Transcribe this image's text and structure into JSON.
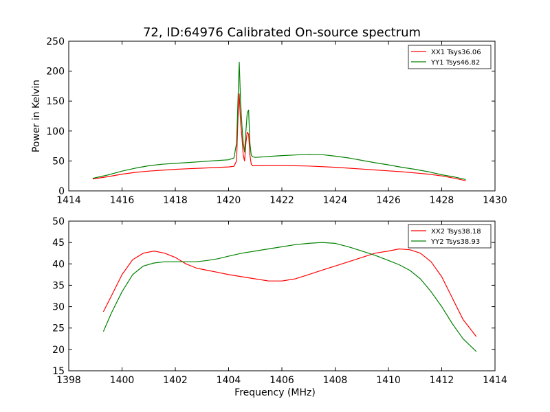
{
  "title": "72, ID:64976 Calibrated On-source spectrum",
  "colors": {
    "xx": "#ff0000",
    "yy": "#008000"
  },
  "chart_data": [
    {
      "type": "line",
      "title": "72, ID:64976 Calibrated On-source spectrum",
      "xlabel": "",
      "ylabel": "Power in Kelvin",
      "xlim": [
        1414,
        1430
      ],
      "ylim": [
        0,
        250
      ],
      "xticks": [
        1414,
        1416,
        1418,
        1420,
        1422,
        1424,
        1426,
        1428,
        1430
      ],
      "yticks": [
        0,
        50,
        100,
        150,
        200,
        250
      ],
      "legend_position": "top-right",
      "grid": false,
      "series": [
        {
          "name": "XX1 Tsys36.06",
          "color": "#ff0000",
          "x": [
            1414.9,
            1415.5,
            1416.0,
            1416.5,
            1417.0,
            1417.5,
            1418.0,
            1418.5,
            1419.0,
            1419.5,
            1420.0,
            1420.2,
            1420.3,
            1420.35,
            1420.4,
            1420.45,
            1420.5,
            1420.55,
            1420.6,
            1420.65,
            1420.7,
            1420.75,
            1420.8,
            1420.85,
            1420.9,
            1421.0,
            1421.5,
            1422.0,
            1422.5,
            1423.0,
            1423.5,
            1424.0,
            1424.5,
            1425.0,
            1425.5,
            1426.0,
            1426.5,
            1427.0,
            1427.5,
            1428.0,
            1428.5,
            1428.9
          ],
          "y": [
            20,
            24,
            28,
            31,
            33,
            34.5,
            36,
            37,
            38,
            39,
            40,
            41,
            50,
            120,
            162,
            115,
            90,
            60,
            50,
            80,
            98,
            95,
            60,
            45,
            42,
            42,
            42.5,
            42.5,
            42,
            41.5,
            40.5,
            39.5,
            38,
            36.5,
            35,
            33.5,
            32,
            30,
            28,
            25,
            21,
            17
          ]
        },
        {
          "name": "YY1 Tsys46.82",
          "color": "#008000",
          "x": [
            1414.9,
            1415.5,
            1416.0,
            1416.5,
            1417.0,
            1417.5,
            1418.0,
            1418.5,
            1419.0,
            1419.5,
            1420.0,
            1420.2,
            1420.3,
            1420.35,
            1420.4,
            1420.45,
            1420.5,
            1420.55,
            1420.6,
            1420.65,
            1420.7,
            1420.75,
            1420.8,
            1420.85,
            1420.9,
            1421.0,
            1421.5,
            1422.0,
            1422.5,
            1423.0,
            1423.5,
            1424.0,
            1424.5,
            1425.0,
            1425.5,
            1426.0,
            1426.5,
            1427.0,
            1427.5,
            1428.0,
            1428.5,
            1428.9
          ],
          "y": [
            21,
            27,
            33,
            38,
            42,
            44.5,
            46,
            47.5,
            49,
            50.5,
            52,
            55,
            80,
            150,
            215,
            150,
            110,
            80,
            65,
            100,
            130,
            135,
            80,
            60,
            57,
            56,
            57.5,
            59,
            60,
            61,
            60.5,
            58,
            55,
            51,
            47,
            43.5,
            39.5,
            36,
            32,
            27,
            23,
            19
          ]
        }
      ]
    },
    {
      "type": "line",
      "title": "",
      "xlabel": "Frequency (MHz)",
      "ylabel": "",
      "xlim": [
        1398,
        1414
      ],
      "ylim": [
        15,
        50
      ],
      "xticks": [
        1398,
        1400,
        1402,
        1404,
        1406,
        1408,
        1410,
        1412,
        1414
      ],
      "yticks": [
        15,
        20,
        25,
        30,
        35,
        40,
        45,
        50
      ],
      "legend_position": "top-right",
      "grid": false,
      "series": [
        {
          "name": "XX2 Tsys38.18",
          "color": "#ff0000",
          "x": [
            1399.3,
            1399.6,
            1400.0,
            1400.4,
            1400.8,
            1401.2,
            1401.6,
            1402.0,
            1402.4,
            1402.8,
            1403.2,
            1403.6,
            1404.0,
            1404.5,
            1405.0,
            1405.5,
            1406.0,
            1406.5,
            1407.0,
            1407.5,
            1408.0,
            1408.5,
            1409.0,
            1409.5,
            1410.0,
            1410.4,
            1410.8,
            1411.2,
            1411.6,
            1412.0,
            1412.4,
            1412.8,
            1413.3
          ],
          "y": [
            28.8,
            32.5,
            37.5,
            41,
            42.5,
            43,
            42.5,
            41.5,
            40,
            39,
            38.5,
            38,
            37.5,
            37,
            36.5,
            36,
            36,
            36.5,
            37.5,
            38.5,
            39.5,
            40.5,
            41.5,
            42.5,
            43,
            43.5,
            43.3,
            42.5,
            40.5,
            37,
            32,
            27,
            23
          ]
        },
        {
          "name": "YY2 Tsys38.93",
          "color": "#008000",
          "x": [
            1399.3,
            1399.6,
            1400.0,
            1400.4,
            1400.8,
            1401.2,
            1401.6,
            1402.0,
            1402.4,
            1402.8,
            1403.2,
            1403.6,
            1404.0,
            1404.5,
            1405.0,
            1405.5,
            1406.0,
            1406.5,
            1407.0,
            1407.5,
            1408.0,
            1408.5,
            1409.0,
            1409.5,
            1410.0,
            1410.4,
            1410.8,
            1411.2,
            1411.6,
            1412.0,
            1412.4,
            1412.8,
            1413.3
          ],
          "y": [
            24.2,
            28.5,
            33.5,
            37.5,
            39.5,
            40.2,
            40.5,
            40.5,
            40.5,
            40.5,
            40.8,
            41.2,
            41.8,
            42.5,
            43,
            43.5,
            44,
            44.5,
            44.8,
            45,
            44.8,
            44,
            43,
            42,
            40.8,
            39.8,
            38.5,
            36.5,
            33.5,
            30,
            26,
            22.5,
            19.5
          ]
        }
      ]
    }
  ]
}
